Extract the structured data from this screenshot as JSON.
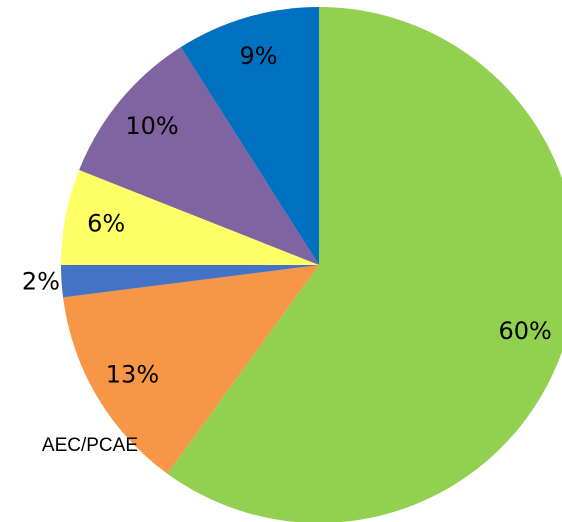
{
  "chart_data": {
    "type": "pie",
    "values": [
      60,
      13,
      2,
      6,
      10,
      9
    ],
    "value_labels": [
      "60%",
      "13%",
      "2%",
      "6%",
      "10%",
      "9%"
    ],
    "colors": [
      "#92d050",
      "#f79646",
      "#4472c4",
      "#ffff66",
      "#8064a2",
      "#0070c0"
    ],
    "annotation": "AEC/PCAE"
  }
}
